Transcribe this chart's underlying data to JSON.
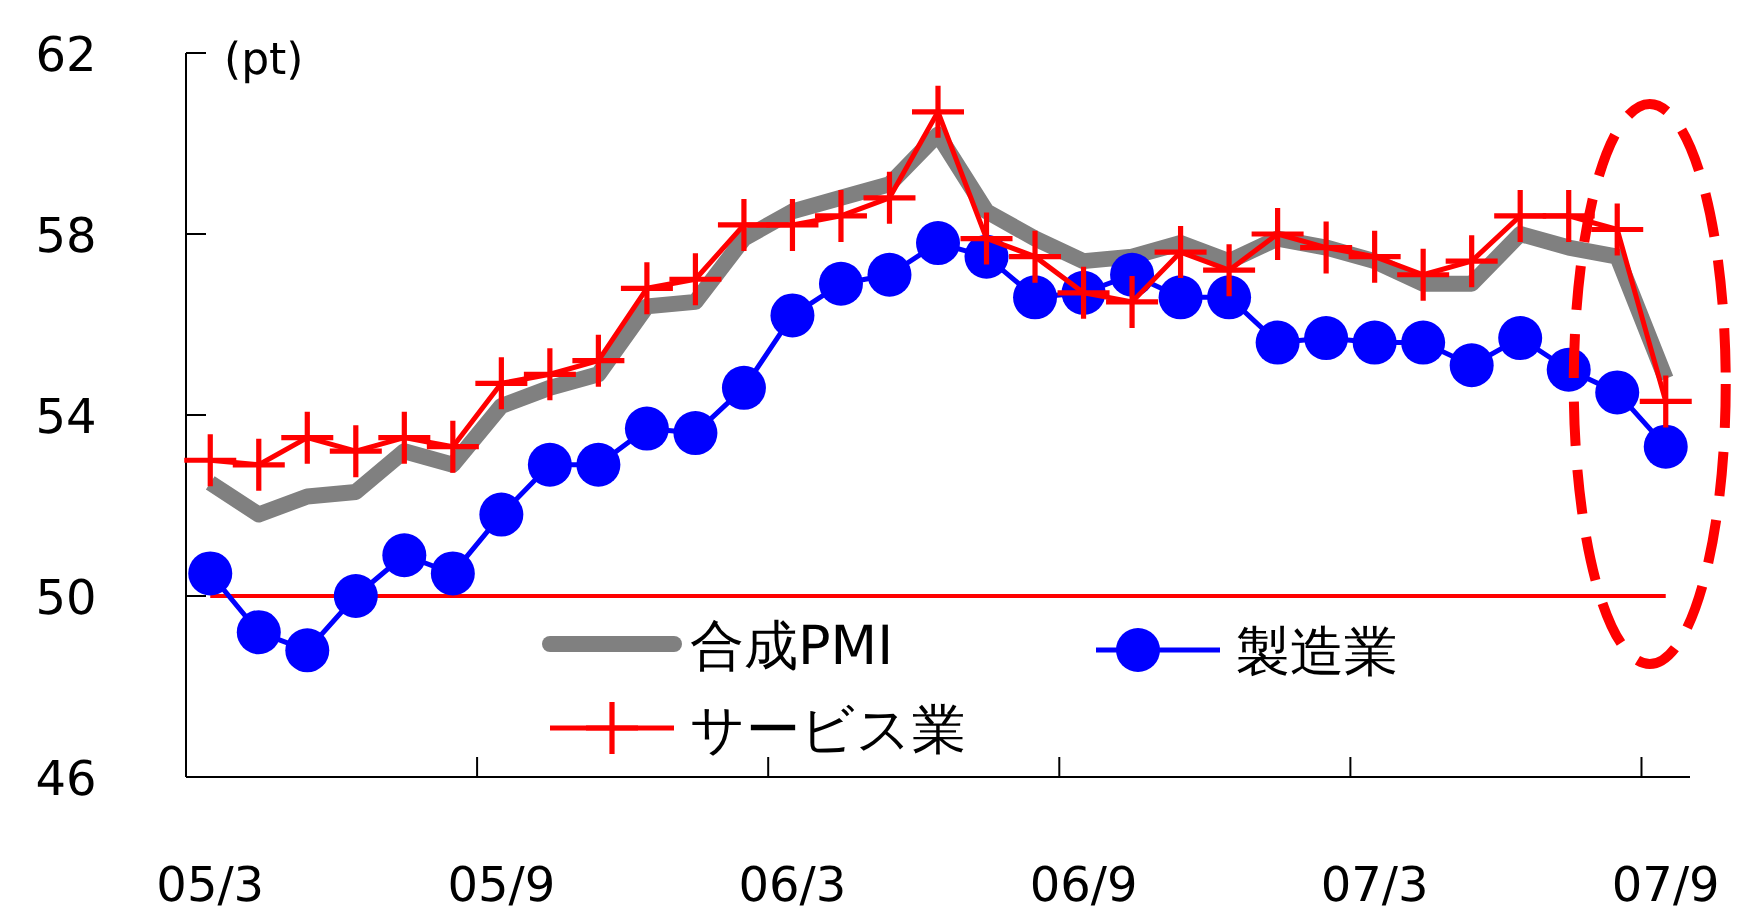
{
  "chart_data": {
    "type": "line",
    "ylabel": "(pt)",
    "legend": "bottom",
    "ylim": [
      46,
      62
    ],
    "yticks": [
      46,
      50,
      54,
      58,
      62
    ],
    "categories": [
      "05/3",
      null,
      null,
      null,
      null,
      null,
      "05/9",
      null,
      null,
      null,
      null,
      null,
      "06/3",
      null,
      null,
      null,
      null,
      null,
      "06/9",
      null,
      null,
      null,
      null,
      null,
      "07/3",
      null,
      null,
      null,
      null,
      null,
      "07/9"
    ],
    "series": [
      {
        "name": "合成PMI",
        "color": "#808080",
        "marker": "none",
        "values": [
          52.5,
          51.8,
          52.2,
          52.3,
          53.2,
          52.9,
          54.2,
          54.6,
          54.9,
          56.4,
          56.5,
          57.9,
          58.5,
          58.8,
          59.1,
          60.2,
          58.5,
          57.9,
          57.4,
          57.5,
          57.8,
          57.4,
          57.9,
          57.7,
          57.4,
          56.9,
          56.9,
          58.0,
          57.7,
          57.5,
          54.8
        ]
      },
      {
        "name": "製造業",
        "color": "#0000ff",
        "marker": "circle",
        "values": [
          50.5,
          49.2,
          48.8,
          50.0,
          50.9,
          50.5,
          51.8,
          52.9,
          52.9,
          53.7,
          53.6,
          54.6,
          56.2,
          56.9,
          57.1,
          57.8,
          57.5,
          56.6,
          56.7,
          57.1,
          56.6,
          56.6,
          55.6,
          55.7,
          55.6,
          55.6,
          55.1,
          55.7,
          55.0,
          54.5,
          53.3
        ]
      },
      {
        "name": "サービス業",
        "color": "#ff0000",
        "marker": "cross",
        "values": [
          53.0,
          52.9,
          53.5,
          53.2,
          53.5,
          53.3,
          54.7,
          54.9,
          55.2,
          56.8,
          57.0,
          58.2,
          58.2,
          58.4,
          58.8,
          60.7,
          57.9,
          57.5,
          56.7,
          56.5,
          57.6,
          57.2,
          58.0,
          57.7,
          57.5,
          57.1,
          57.4,
          58.4,
          58.4,
          58.1,
          54.3
        ]
      }
    ],
    "ref_lines": [
      {
        "axis": "y",
        "value": 50,
        "color": "#ff0000"
      }
    ]
  }
}
